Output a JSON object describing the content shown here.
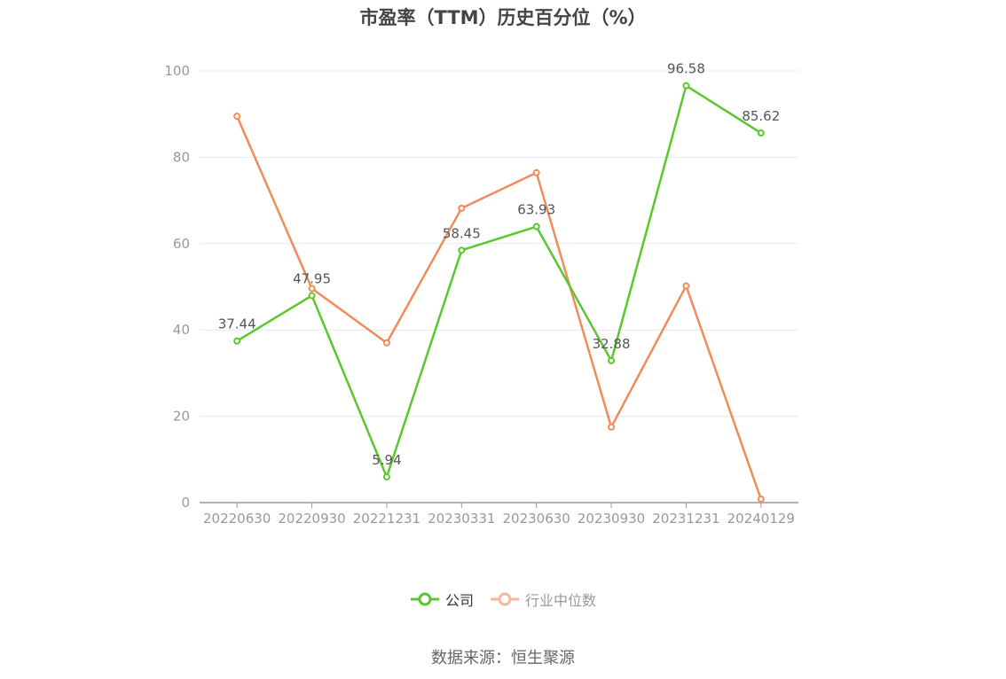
{
  "title": "市盈率（TTM）历史百分位（%）",
  "source": "数据来源：恒生聚源",
  "colors": {
    "company": "#5ac82c",
    "industry": "#f08c5a",
    "industry_legend": "#f5b89b",
    "axis": "#999999",
    "grid": "#e6e9f0"
  },
  "chart_data": {
    "type": "line",
    "x": [
      "20220630",
      "20220930",
      "20221231",
      "20230331",
      "20230630",
      "20230930",
      "20231231",
      "20240129"
    ],
    "ylim": [
      0,
      100
    ],
    "yticks": [
      0,
      20,
      40,
      60,
      80,
      100
    ],
    "grid": true,
    "legend_position": "bottom-center",
    "series": [
      {
        "name": "公司",
        "values": [
          37.44,
          47.95,
          5.94,
          58.45,
          63.93,
          32.88,
          96.58,
          85.62
        ],
        "labeled": true
      },
      {
        "name": "行业中位数",
        "values": [
          89.5,
          49.6,
          37.0,
          68.2,
          76.4,
          17.5,
          50.2,
          0.8
        ],
        "labeled": false
      }
    ]
  }
}
